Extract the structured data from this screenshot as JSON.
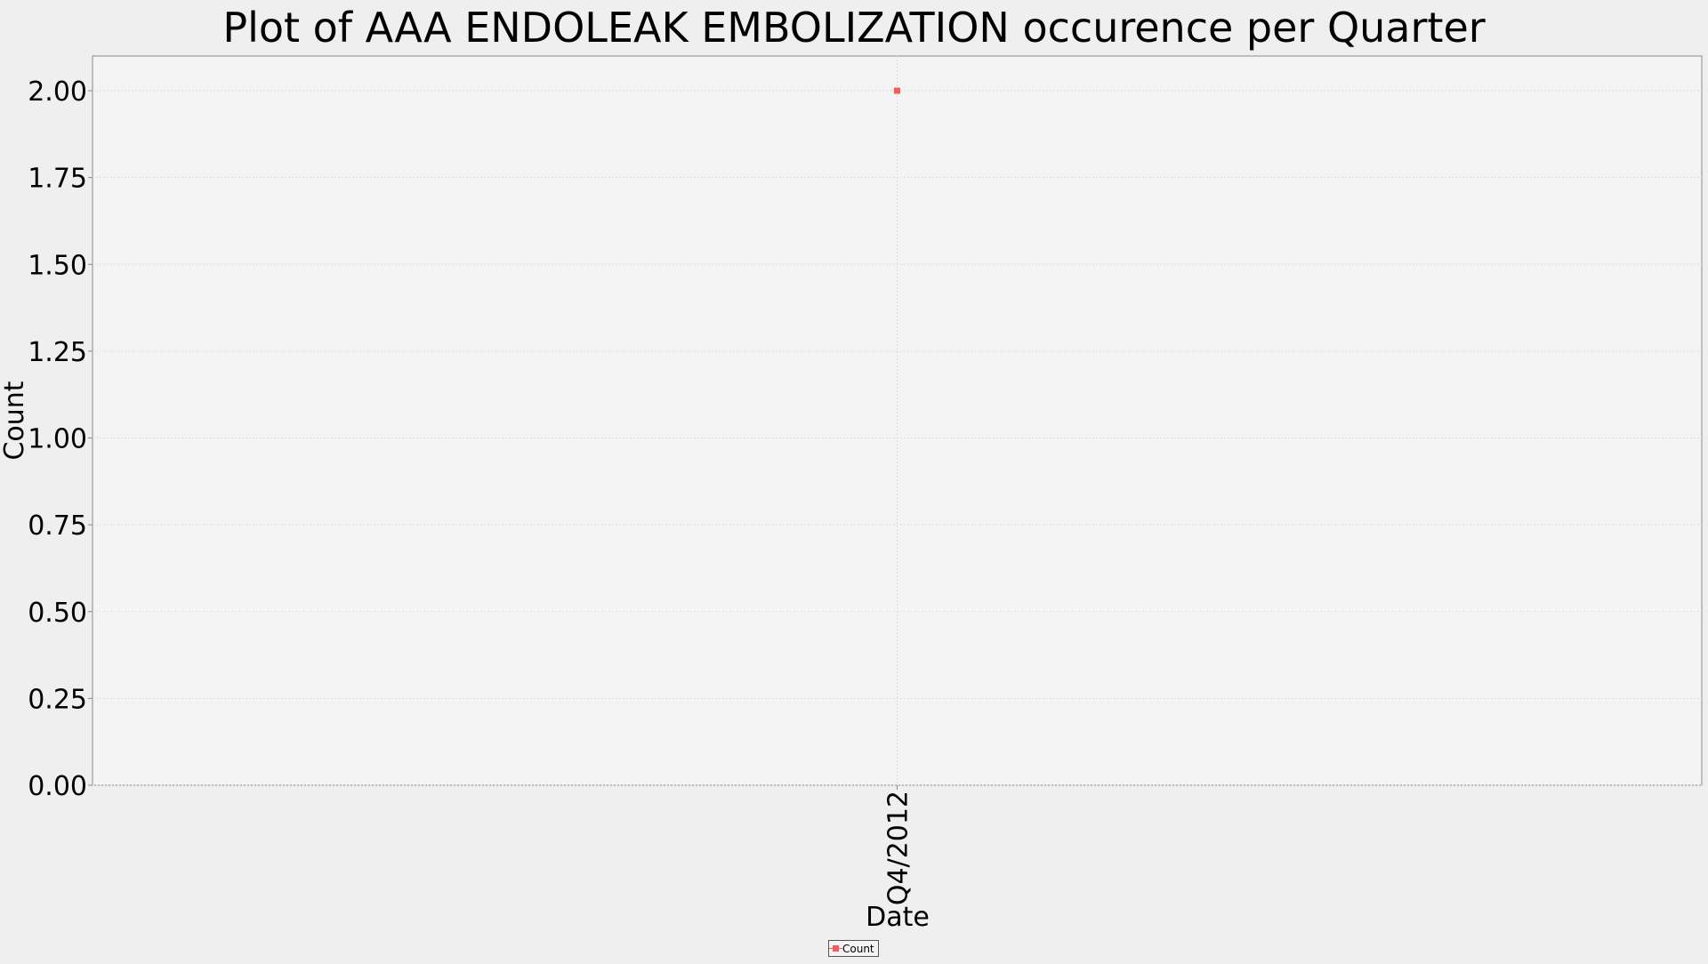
{
  "chart_data": {
    "type": "scatter",
    "title": "Plot of AAA ENDOLEAK EMBOLIZATION occurence per Quarter",
    "xlabel": "Date",
    "ylabel": "Count",
    "categories": [
      "Q4/2012"
    ],
    "series": [
      {
        "name": "Count",
        "values": [
          2
        ],
        "color": "#f45b5b"
      }
    ],
    "ylim": [
      0,
      2.1
    ],
    "yticks": [
      "0.00",
      "0.25",
      "0.50",
      "0.75",
      "1.00",
      "1.25",
      "1.50",
      "1.75",
      "2.00"
    ],
    "grid": true,
    "legend_position": "bottom-center"
  },
  "colors": {
    "page_background": "#efefef",
    "plot_background": "#f4f4f4",
    "grid": "#dddddd",
    "marker": "#f45b5b"
  }
}
